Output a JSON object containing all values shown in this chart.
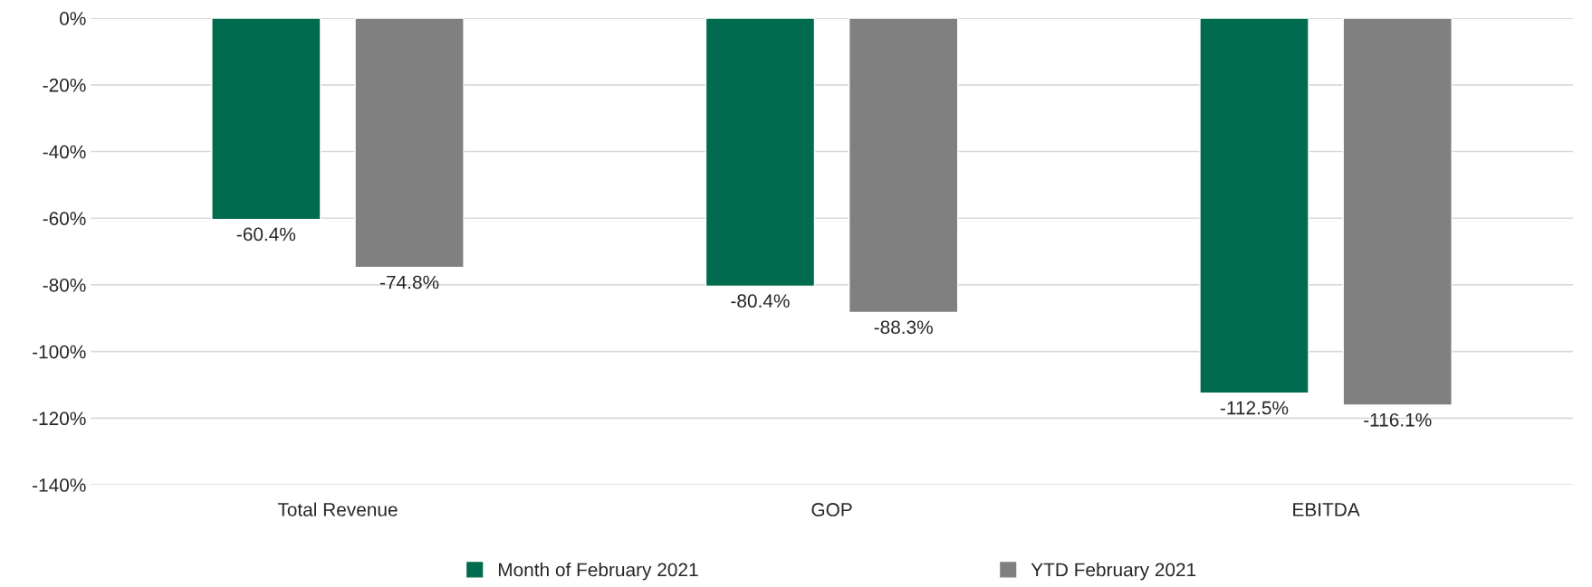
{
  "chart_data": {
    "type": "bar",
    "categories": [
      "Total Revenue",
      "GOP",
      "EBITDA"
    ],
    "series": [
      {
        "name": "Month of February 2021",
        "color": "#006b4f",
        "values": [
          -60.4,
          -80.4,
          -112.5
        ],
        "value_labels": [
          "-60.4%",
          "-80.4%",
          "-112.5%"
        ]
      },
      {
        "name": "YTD February 2021",
        "color": "#808080",
        "values": [
          -74.8,
          -88.3,
          -116.1
        ],
        "value_labels": [
          "-74.8%",
          "-88.3%",
          "-116.1%"
        ]
      }
    ],
    "ylim": [
      -140,
      0
    ],
    "yticks": [
      {
        "value": 0,
        "label": "0%"
      },
      {
        "value": -20,
        "label": "-20%"
      },
      {
        "value": -40,
        "label": "-40%"
      },
      {
        "value": -60,
        "label": "-60%"
      },
      {
        "value": -80,
        "label": "-80%"
      },
      {
        "value": -100,
        "label": "-100%"
      },
      {
        "value": -120,
        "label": "-120%"
      },
      {
        "value": -140,
        "label": "-140%"
      }
    ],
    "grid": "y",
    "legend": "bottom"
  }
}
